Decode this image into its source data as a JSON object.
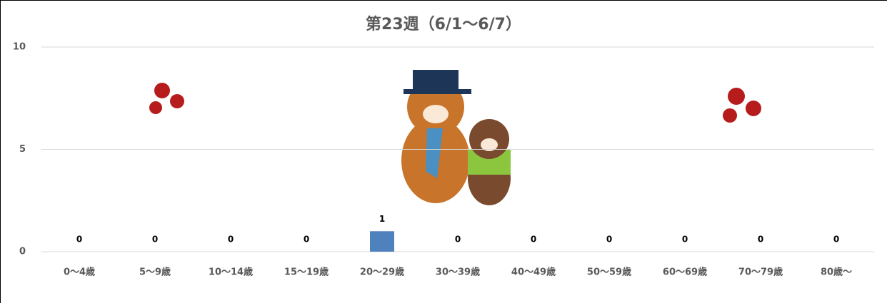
{
  "chart_data": {
    "type": "bar",
    "title": "第23週（6/1～6/7）",
    "categories": [
      "0～4歳",
      "5～9歳",
      "10～14歳",
      "15～19歳",
      "20～29歳",
      "30～39歳",
      "40～49歳",
      "50～59歳",
      "60～69歳",
      "70～79歳",
      "80歳～"
    ],
    "values": [
      0,
      0,
      0,
      0,
      1,
      0,
      0,
      0,
      0,
      0,
      0
    ],
    "color": "#4f81bd",
    "ylim": [
      0,
      10
    ],
    "yticks": [
      0,
      5,
      10
    ],
    "grid": true
  }
}
